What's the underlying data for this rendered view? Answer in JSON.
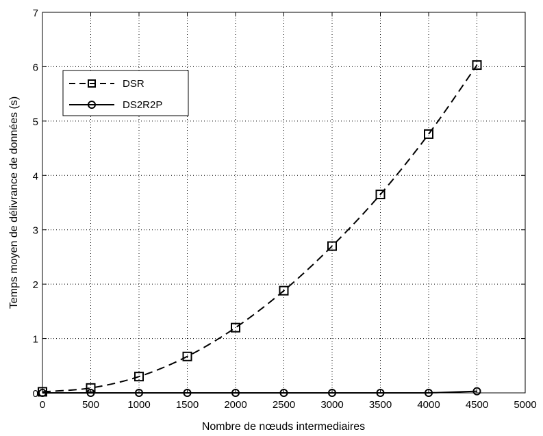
{
  "chart_data": {
    "type": "line",
    "xlabel": "Nombre de nœuds intermediaires",
    "ylabel": "Temps moyen de délivrance de données (s)",
    "xlim": [
      0,
      5000
    ],
    "ylim": [
      0,
      7
    ],
    "xticks": [
      0,
      500,
      1000,
      1500,
      2000,
      2500,
      3000,
      3500,
      4000,
      4500,
      5000
    ],
    "yticks": [
      0,
      1,
      2,
      3,
      4,
      5,
      6,
      7
    ],
    "grid": true,
    "legend_position": "top-left",
    "x": [
      0,
      500,
      1000,
      1500,
      2000,
      2500,
      3000,
      3500,
      4000,
      4500
    ],
    "series": [
      {
        "name": "DSR",
        "marker": "square",
        "line_style": "dashed",
        "color": "#000000",
        "values": [
          0.02,
          0.09,
          0.3,
          0.67,
          1.2,
          1.88,
          2.7,
          3.65,
          4.76,
          6.03
        ]
      },
      {
        "name": "DS2R2P",
        "marker": "circle",
        "line_style": "solid",
        "color": "#000000",
        "values": [
          0.0,
          0.0,
          0.0,
          0.0,
          0.0,
          0.0,
          0.0,
          0.0,
          0.0,
          0.03
        ]
      }
    ]
  }
}
